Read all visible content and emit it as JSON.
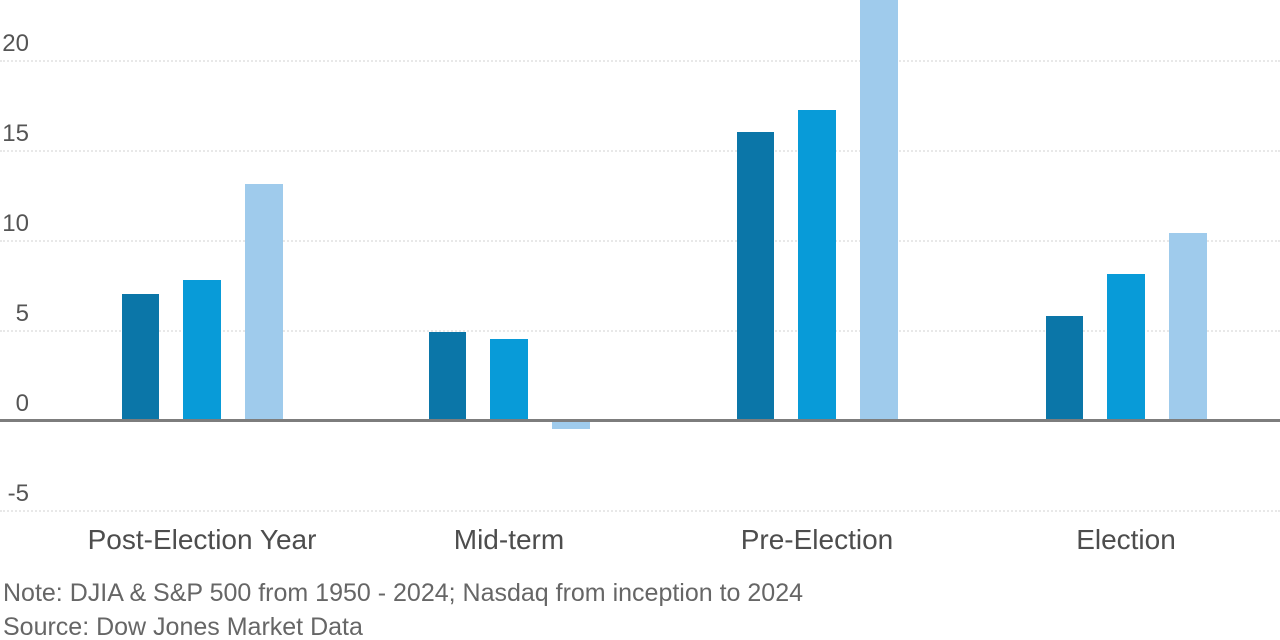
{
  "chart": {
    "note": "Note: DJIA & S&P 500 from 1950 - 2024; Nasdaq from inception to 2024",
    "source": "Source: Dow Jones Market Data"
  },
  "chart_data": {
    "type": "bar",
    "title": "",
    "legend_visible": false,
    "categories": [
      "Post-Election Year",
      "Mid-term",
      "Pre-Election",
      "Election"
    ],
    "series": [
      {
        "name": "DJIA",
        "color": "#0b76a8",
        "values": [
          7.0,
          4.9,
          16.0,
          5.8
        ]
      },
      {
        "name": "S&P 500",
        "color": "#089bd8",
        "values": [
          7.8,
          4.5,
          17.2,
          8.1
        ]
      },
      {
        "name": "Nasdaq",
        "color": "#9fcbec",
        "values": [
          13.1,
          -0.5,
          26,
          10.4
        ],
        "clipped_points": [
          {
            "category": "Pre-Election",
            "note": "bar is cut off at the top edge of the image; visible portion corresponds to at least 23.5"
          }
        ]
      }
    ],
    "series_note": "No legend is rendered; series identities implied by the note text, ordered dark blue to light blue",
    "y_axis": {
      "tick_labels": [
        "20",
        "15",
        "10",
        "5",
        "0",
        "-5"
      ],
      "tick_values": [
        20,
        15,
        10,
        5,
        0,
        -5
      ],
      "visible_range": [
        -5,
        23.5
      ]
    },
    "grid": {
      "gridlines": "horizontal dotted light gray lines every 5 units",
      "zero_line": "solid gray baseline across full width"
    },
    "colors": {
      "background": "#ffffff",
      "gridline": "#e8e8e8",
      "zero_line": "#7d7d7d",
      "axis_label": "#555555",
      "category_label": "#4d4d4d",
      "note_text": "#666666"
    }
  }
}
